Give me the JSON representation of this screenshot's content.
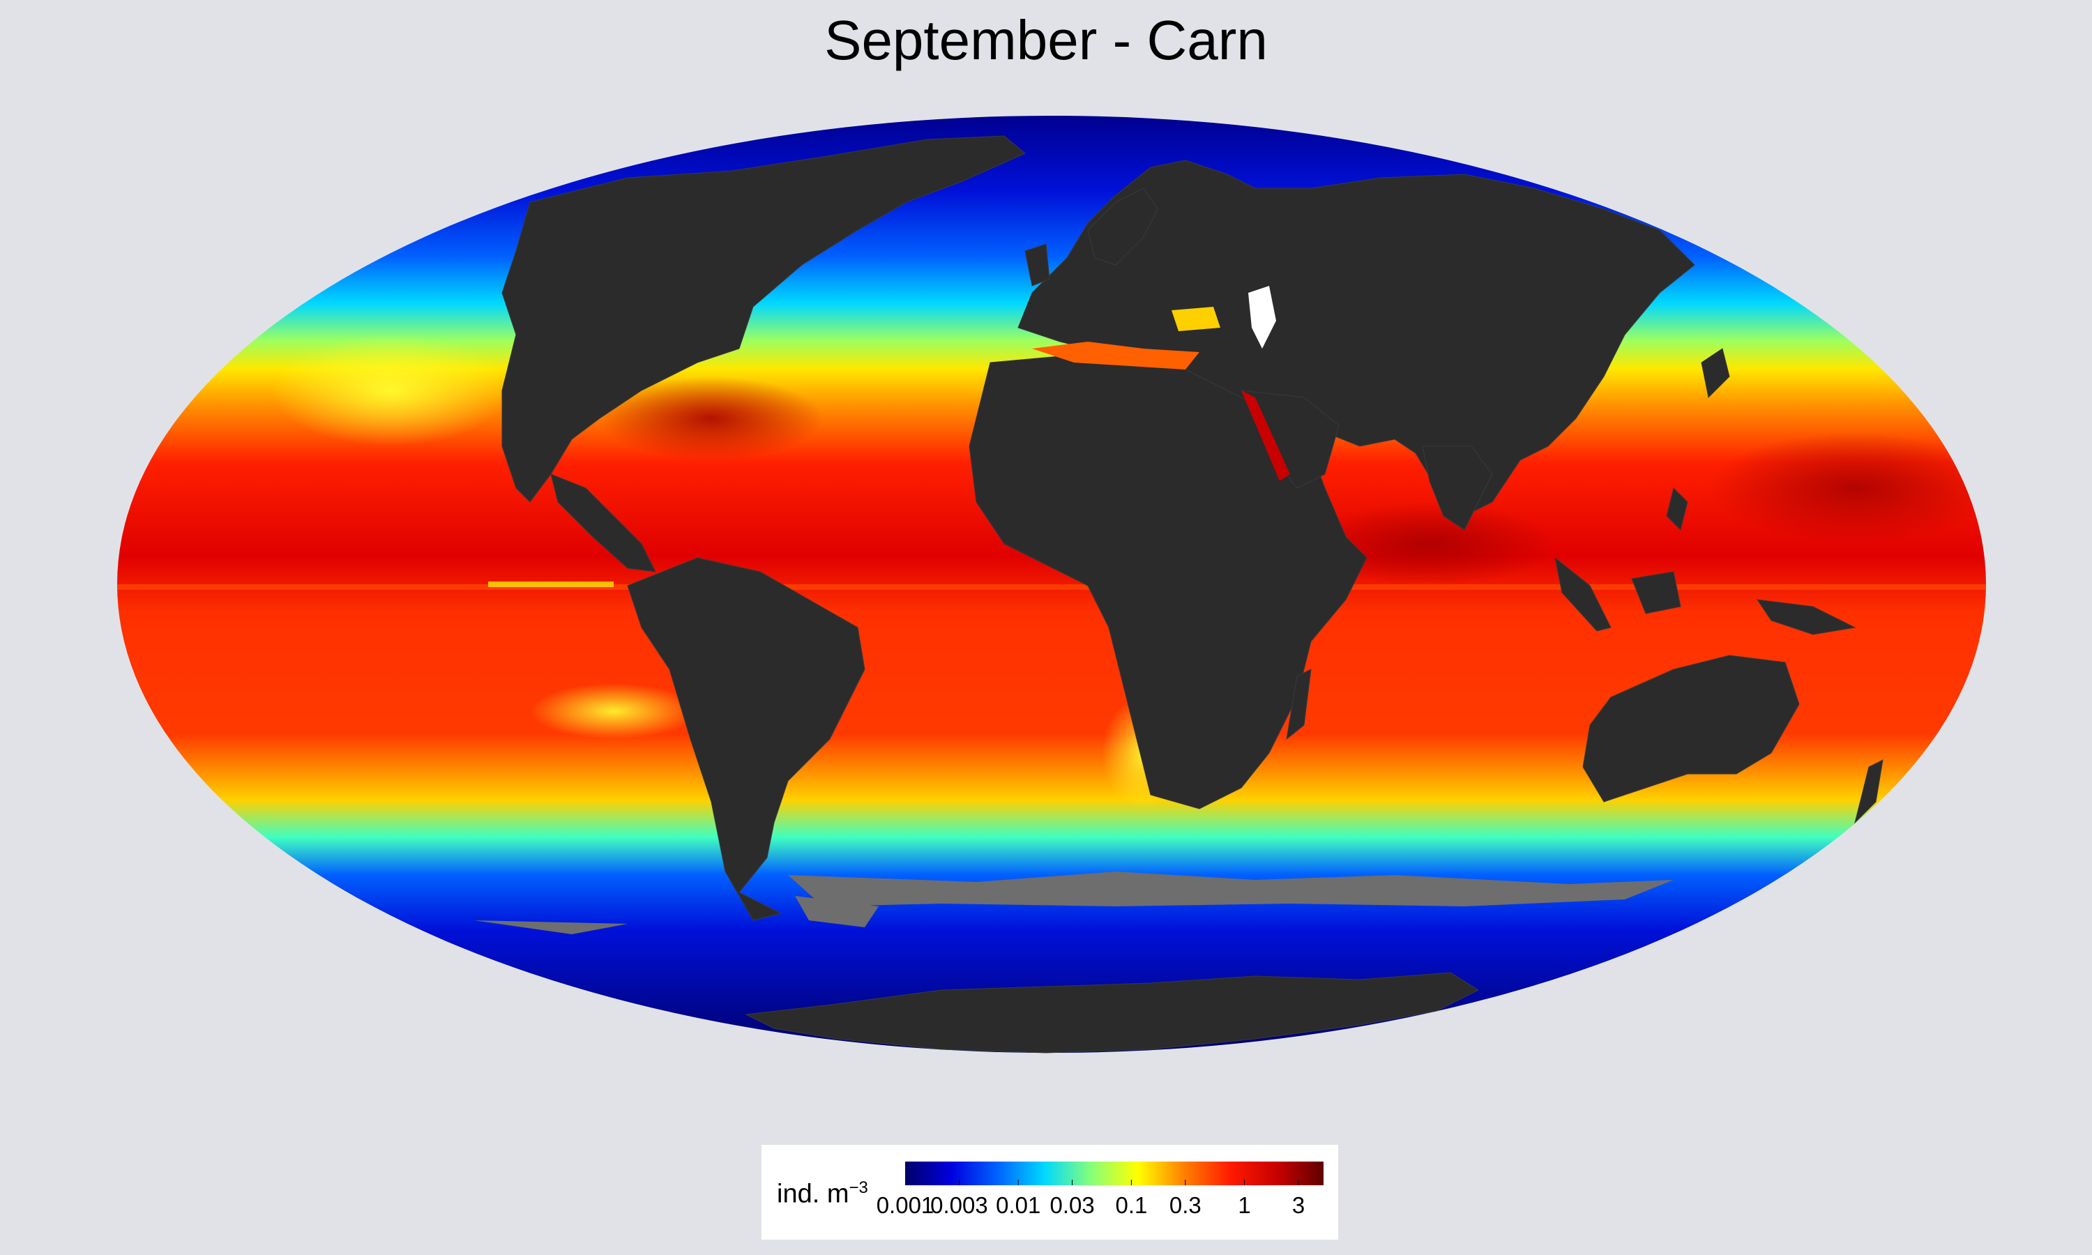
{
  "title": "September - Carn",
  "legend": {
    "unit_base": "ind. m",
    "unit_exponent": "−3",
    "ticks": [
      "0.001",
      "0.003",
      "0.01",
      "0.03",
      "0.1",
      "0.3",
      "1",
      "3"
    ],
    "scale": "log",
    "range": [
      0.001,
      5
    ],
    "colors": [
      "#00006a",
      "#0000e0",
      "#0064ff",
      "#00d8ff",
      "#86ff7a",
      "#ffff00",
      "#ff8000",
      "#ff1a00",
      "#c80000",
      "#600000"
    ]
  },
  "map": {
    "projection": "Mollweide",
    "background_color": "#e1e2e7",
    "land_color": "#2b2b2b",
    "no_data_color": "#6e6e6e"
  }
}
